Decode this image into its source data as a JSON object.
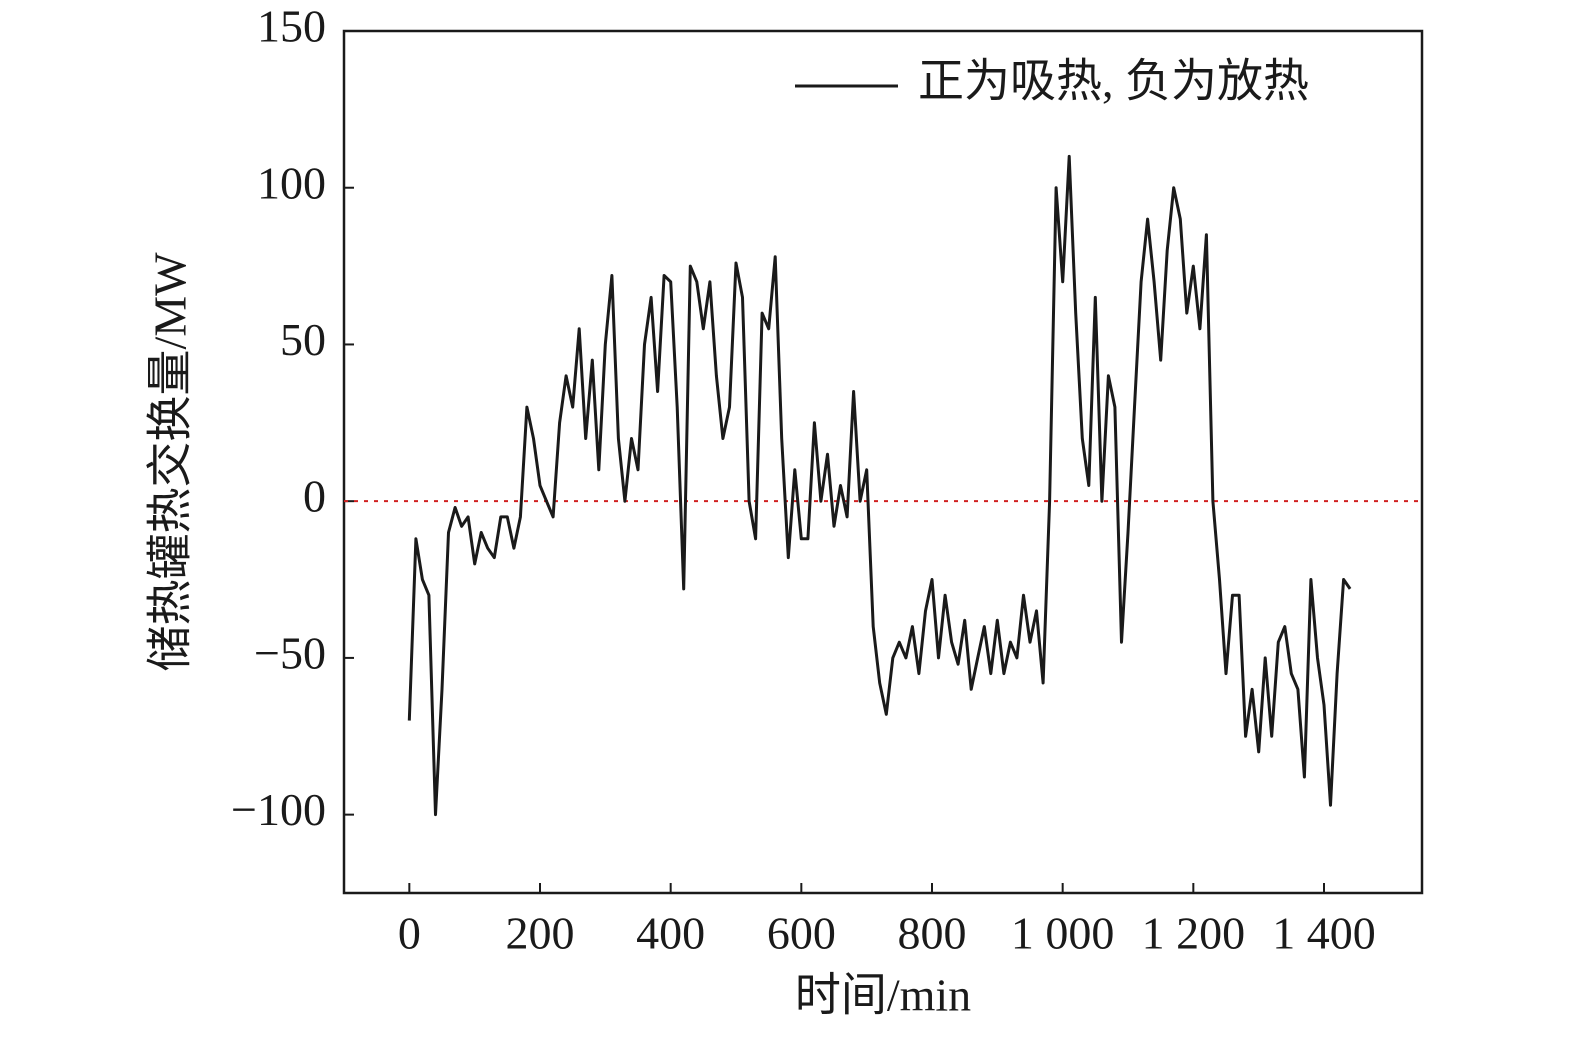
{
  "chart_data": {
    "type": "line",
    "xlabel": "时间/min",
    "ylabel": "储热罐热交换量/MW",
    "xlim": [
      -100,
      1550
    ],
    "ylim": [
      -125,
      150
    ],
    "xticks": [
      0,
      200,
      400,
      600,
      800,
      {
        "value": 1000,
        "label": "1 000"
      },
      {
        "value": 1200,
        "label": "1 200"
      },
      {
        "value": 1400,
        "label": "1 400"
      }
    ],
    "yticks": [
      150,
      100,
      50,
      0,
      {
        "value": -50,
        "label": "−50"
      },
      {
        "value": -100,
        "label": "−100"
      }
    ],
    "legend": "upper right",
    "reference_line": {
      "value": 0,
      "color": "#d02020",
      "style": "dotted"
    },
    "x": [
      0,
      10,
      20,
      30,
      40,
      50,
      60,
      70,
      80,
      90,
      100,
      110,
      120,
      130,
      140,
      150,
      160,
      170,
      180,
      190,
      200,
      210,
      220,
      230,
      240,
      250,
      260,
      270,
      280,
      290,
      300,
      310,
      320,
      330,
      340,
      350,
      360,
      370,
      380,
      390,
      400,
      410,
      420,
      430,
      440,
      450,
      460,
      470,
      480,
      490,
      500,
      510,
      520,
      530,
      540,
      550,
      560,
      570,
      580,
      590,
      600,
      610,
      620,
      630,
      640,
      650,
      660,
      670,
      680,
      690,
      700,
      710,
      720,
      730,
      740,
      750,
      760,
      770,
      780,
      790,
      800,
      810,
      820,
      830,
      840,
      850,
      860,
      870,
      880,
      890,
      900,
      910,
      920,
      930,
      940,
      950,
      960,
      970,
      980,
      990,
      1000,
      1010,
      1020,
      1030,
      1040,
      1050,
      1060,
      1070,
      1080,
      1090,
      1100,
      1110,
      1120,
      1130,
      1140,
      1150,
      1160,
      1170,
      1180,
      1190,
      1200,
      1210,
      1220,
      1230,
      1240,
      1250,
      1260,
      1270,
      1280,
      1290,
      1300,
      1310,
      1320,
      1330,
      1340,
      1350,
      1360,
      1370,
      1380,
      1390,
      1400,
      1410,
      1420,
      1430,
      1440
    ],
    "series": [
      {
        "name": "正为吸热, 负为放热",
        "color": "#1a1a1a",
        "values": [
          -70,
          -12,
          -25,
          -30,
          -100,
          -60,
          -10,
          -2,
          -8,
          -5,
          -20,
          -10,
          -15,
          -18,
          -5,
          -5,
          -15,
          -5,
          30,
          20,
          5,
          0,
          -5,
          25,
          40,
          30,
          55,
          20,
          45,
          10,
          50,
          72,
          20,
          0,
          20,
          10,
          50,
          65,
          35,
          72,
          70,
          30,
          -28,
          75,
          70,
          55,
          70,
          40,
          20,
          30,
          76,
          65,
          0,
          -12,
          60,
          55,
          78,
          20,
          -18,
          10,
          -12,
          -12,
          25,
          0,
          15,
          -8,
          5,
          -5,
          35,
          0,
          10,
          -40,
          -58,
          -68,
          -50,
          -45,
          -50,
          -40,
          -55,
          -35,
          -25,
          -50,
          -30,
          -45,
          -52,
          -38,
          -60,
          -50,
          -40,
          -55,
          -38,
          -55,
          -45,
          -50,
          -30,
          -45,
          -35,
          -58,
          0,
          100,
          70,
          110,
          60,
          20,
          5,
          65,
          0,
          40,
          30,
          -45,
          -10,
          30,
          70,
          90,
          70,
          45,
          80,
          100,
          90,
          60,
          75,
          55,
          85,
          0,
          -25,
          -55,
          -30,
          -30,
          -75,
          -60,
          -80,
          -50,
          -75,
          -45,
          -40,
          -55,
          -60,
          -88,
          -25,
          -50,
          -65,
          -97,
          -55,
          -25,
          -28
        ]
      }
    ]
  }
}
